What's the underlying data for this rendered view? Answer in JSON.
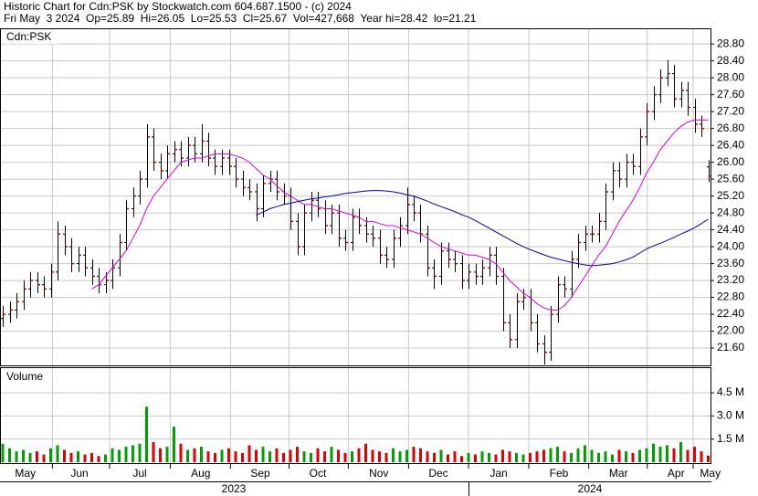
{
  "chart_data": [
    {
      "type": "ohlc",
      "title": "Historic Chart for Cdn:PSK by Stockwatch.com 604.687.1500 - (c) 2024",
      "subtitle": "Fri May  3 2024  Op=25.89  Hi=26.05  Lo=25.53  Cl=25.67  Vol=427,668  Year hi=28.42  lo=21.21",
      "label": "Cdn:PSK",
      "color": "#000000",
      "close_color": "#cc0000",
      "grid": true,
      "xlim": [
        0,
        103
      ],
      "xticks": [
        {
          "value": 3.3,
          "label": "May"
        },
        {
          "value": 11.2,
          "label": "Jun"
        },
        {
          "value": 20,
          "label": "Jul"
        },
        {
          "value": 28.9,
          "label": "Aug"
        },
        {
          "value": 37.6,
          "label": "Sep"
        },
        {
          "value": 46,
          "label": "Oct"
        },
        {
          "value": 54.9,
          "label": "Nov"
        },
        {
          "value": 63.6,
          "label": "Dec"
        },
        {
          "value": 72.4,
          "label": "Jan"
        },
        {
          "value": 81.2,
          "label": "Feb"
        },
        {
          "value": 89.9,
          "label": "Mar"
        },
        {
          "value": 98.3,
          "label": "Apr"
        },
        {
          "value": 103.3,
          "label": "May"
        }
      ],
      "years": [
        "2023",
        "2024"
      ],
      "ylim": [
        21.19,
        29.15
      ],
      "yticks": [
        {
          "value": 21.6,
          "label": "21.60"
        },
        {
          "value": 22,
          "label": "22.00"
        },
        {
          "value": 22.4,
          "label": "22.40"
        },
        {
          "value": 22.8,
          "label": "22.80"
        },
        {
          "value": 23.2,
          "label": "23.20"
        },
        {
          "value": 23.6,
          "label": "23.60"
        },
        {
          "value": 24,
          "label": "24.00"
        },
        {
          "value": 24.4,
          "label": "24.40"
        },
        {
          "value": 24.8,
          "label": "24.80"
        },
        {
          "value": 25.2,
          "label": "25.20"
        },
        {
          "value": 25.6,
          "label": "25.60"
        },
        {
          "value": 26,
          "label": "26.00"
        },
        {
          "value": 26.4,
          "label": "26.40"
        },
        {
          "value": 26.8,
          "label": "26.80"
        },
        {
          "value": 27.2,
          "label": "27.20"
        },
        {
          "value": 27.6,
          "label": "27.60"
        },
        {
          "value": 28,
          "label": "28.00"
        },
        {
          "value": 28.4,
          "label": "28.40"
        },
        {
          "value": 28.8,
          "label": "28.80"
        }
      ],
      "open": [
        22.3,
        22.4,
        22.5,
        22.7,
        23.0,
        23.2,
        23.1,
        23.0,
        23.4,
        24.3,
        24.0,
        23.6,
        23.8,
        23.5,
        23.3,
        23.1,
        23.2,
        23.5,
        24.1,
        24.9,
        25.2,
        25.6,
        26.6,
        26.0,
        25.8,
        26.2,
        26.3,
        26.1,
        26.4,
        26.2,
        26.5,
        26.1,
        25.9,
        26.1,
        25.9,
        25.6,
        25.4,
        25.3,
        24.9,
        25.5,
        25.6,
        25.3,
        25.2,
        24.6,
        24.0,
        24.8,
        25.1,
        24.9,
        24.5,
        24.8,
        24.2,
        24.1,
        24.7,
        24.5,
        24.3,
        24.2,
        23.8,
        23.7,
        24.2,
        24.5,
        25.0,
        24.8,
        24.3,
        23.5,
        23.3,
        23.9,
        23.7,
        23.6,
        23.2,
        23.4,
        23.3,
        23.5,
        23.8,
        23.3,
        22.2,
        21.8,
        22.7,
        22.8,
        22.2,
        21.7,
        21.5,
        22.4,
        23.1,
        23.0,
        23.7,
        24.1,
        24.3,
        24.3,
        24.6,
        25.3,
        25.8,
        25.6,
        26.0,
        25.9,
        26.6,
        27.2,
        27.6,
        28.0,
        28.1,
        27.5,
        27.7,
        27.3,
        26.9,
        25.89
      ],
      "high": [
        22.6,
        22.7,
        22.9,
        23.2,
        23.4,
        23.4,
        23.3,
        23.6,
        24.6,
        24.5,
        24.2,
        24.0,
        24.0,
        23.7,
        23.5,
        23.4,
        23.7,
        24.3,
        25.1,
        25.4,
        25.8,
        26.9,
        26.8,
        26.2,
        26.4,
        26.5,
        26.5,
        26.6,
        26.6,
        26.9,
        26.7,
        26.3,
        26.3,
        26.3,
        26.1,
        25.8,
        25.6,
        25.5,
        25.7,
        25.8,
        25.8,
        25.5,
        25.4,
        24.8,
        25.0,
        25.3,
        25.3,
        25.1,
        25.0,
        25.0,
        24.4,
        24.9,
        24.9,
        24.7,
        24.5,
        24.4,
        24.0,
        24.4,
        24.7,
        25.4,
        25.2,
        25.0,
        24.5,
        23.7,
        24.1,
        24.1,
        23.9,
        23.8,
        23.6,
        23.6,
        23.7,
        24.0,
        24.0,
        23.5,
        22.4,
        22.9,
        23.0,
        23.0,
        22.4,
        21.9,
        22.6,
        23.3,
        23.3,
        23.9,
        24.3,
        24.5,
        24.5,
        24.8,
        25.5,
        26.0,
        26.0,
        26.2,
        26.2,
        26.8,
        27.4,
        27.8,
        28.2,
        28.42,
        28.3,
        27.9,
        27.9,
        27.5,
        27.1,
        26.05
      ],
      "low": [
        22.1,
        22.2,
        22.3,
        22.5,
        22.8,
        22.9,
        22.8,
        22.8,
        23.2,
        23.8,
        23.4,
        23.4,
        23.3,
        23.1,
        22.9,
        22.9,
        23.0,
        23.3,
        23.9,
        24.7,
        25.0,
        25.4,
        25.8,
        25.6,
        25.6,
        26.0,
        25.9,
        25.9,
        26.0,
        26.0,
        25.9,
        25.7,
        25.7,
        25.7,
        25.4,
        25.2,
        25.1,
        24.6,
        24.7,
        25.3,
        25.1,
        25.0,
        24.4,
        23.8,
        23.8,
        24.6,
        24.7,
        24.3,
        24.3,
        24.0,
        23.9,
        23.9,
        24.3,
        24.1,
        24.0,
        23.6,
        23.5,
        23.5,
        24.0,
        24.3,
        24.6,
        24.1,
        23.3,
        23.0,
        23.1,
        23.5,
        23.4,
        23.0,
        23.0,
        23.1,
        23.1,
        23.3,
        23.1,
        22.0,
        21.6,
        21.6,
        22.5,
        22.0,
        21.5,
        21.21,
        21.3,
        22.2,
        22.8,
        22.8,
        23.5,
        23.9,
        24.1,
        24.1,
        24.4,
        25.1,
        25.4,
        25.4,
        25.7,
        25.7,
        26.4,
        27.0,
        27.4,
        27.8,
        27.3,
        27.3,
        27.1,
        26.7,
        26.6,
        25.53
      ],
      "close": [
        22.4,
        22.5,
        22.7,
        23.0,
        23.2,
        23.1,
        23.0,
        23.4,
        24.3,
        24.0,
        23.6,
        23.8,
        23.5,
        23.3,
        23.1,
        23.2,
        23.5,
        24.1,
        24.9,
        25.2,
        25.6,
        26.6,
        26.0,
        25.8,
        26.2,
        26.3,
        26.1,
        26.4,
        26.2,
        26.5,
        26.1,
        25.9,
        26.1,
        25.9,
        25.6,
        25.4,
        25.3,
        24.9,
        25.5,
        25.6,
        25.3,
        25.2,
        24.6,
        24.0,
        24.8,
        25.1,
        24.9,
        24.5,
        24.8,
        24.2,
        24.1,
        24.7,
        24.5,
        24.3,
        24.2,
        23.8,
        23.7,
        24.2,
        24.5,
        25.0,
        24.8,
        24.3,
        23.5,
        23.3,
        23.9,
        23.7,
        23.6,
        23.2,
        23.4,
        23.3,
        23.5,
        23.8,
        23.3,
        22.2,
        21.8,
        22.7,
        22.8,
        22.2,
        21.7,
        21.5,
        22.4,
        23.1,
        23.0,
        23.7,
        24.1,
        24.3,
        24.3,
        24.6,
        25.3,
        25.8,
        25.6,
        26.0,
        25.9,
        26.6,
        27.2,
        27.6,
        28.0,
        28.1,
        27.5,
        27.7,
        27.3,
        26.9,
        26.8,
        25.67
      ],
      "series": [
        {
          "color": "#e000e0",
          "values": [
            null,
            null,
            null,
            null,
            null,
            null,
            null,
            null,
            null,
            null,
            null,
            null,
            null,
            23.0,
            23.1,
            23.3,
            23.5,
            23.7,
            23.9,
            24.2,
            24.5,
            24.9,
            25.2,
            25.4,
            25.6,
            25.8,
            26.0,
            26.05,
            26.1,
            26.1,
            26.15,
            26.2,
            26.2,
            26.2,
            26.15,
            26.1,
            26.0,
            25.85,
            25.7,
            25.6,
            25.45,
            25.3,
            25.2,
            25.1,
            25.0,
            25.0,
            24.95,
            24.9,
            24.9,
            24.85,
            24.8,
            24.75,
            24.7,
            24.6,
            24.6,
            24.55,
            24.5,
            24.5,
            24.45,
            24.4,
            24.35,
            24.3,
            24.2,
            24.1,
            24.0,
            23.95,
            23.9,
            23.85,
            23.8,
            23.8,
            23.75,
            23.7,
            23.6,
            23.4,
            23.2,
            23.05,
            22.9,
            22.8,
            22.65,
            22.55,
            22.5,
            22.5,
            22.6,
            22.8,
            23.05,
            23.3,
            23.55,
            23.8,
            24.0,
            24.3,
            24.6,
            24.85,
            25.1,
            25.4,
            25.75,
            26.0,
            26.3,
            26.5,
            26.7,
            26.85,
            26.95,
            27.0,
            27.0,
            27.0
          ]
        },
        {
          "color": "#0000c0",
          "values": [
            null,
            null,
            null,
            null,
            null,
            null,
            null,
            null,
            null,
            null,
            null,
            null,
            null,
            null,
            null,
            null,
            null,
            null,
            null,
            null,
            null,
            null,
            null,
            null,
            null,
            null,
            null,
            null,
            null,
            null,
            null,
            null,
            null,
            null,
            null,
            null,
            null,
            24.75,
            24.82,
            24.9,
            24.95,
            25.0,
            25.03,
            25.07,
            25.1,
            25.13,
            25.15,
            25.18,
            25.2,
            25.23,
            25.26,
            25.28,
            25.3,
            25.32,
            25.33,
            25.33,
            25.32,
            25.3,
            25.27,
            25.23,
            25.2,
            25.14,
            25.08,
            25.01,
            24.95,
            24.89,
            24.83,
            24.76,
            24.7,
            24.62,
            24.53,
            24.44,
            24.35,
            24.26,
            24.17,
            24.08,
            24.0,
            23.93,
            23.87,
            23.81,
            23.75,
            23.71,
            23.67,
            23.63,
            23.6,
            23.57,
            23.55,
            23.56,
            23.58,
            23.6,
            23.64,
            23.69,
            23.75,
            23.85,
            23.95,
            24.02,
            24.08,
            24.15,
            24.22,
            24.3,
            24.37,
            24.45,
            24.55,
            24.65
          ]
        }
      ]
    },
    {
      "type": "bar",
      "label": "Volume",
      "up_color": "#00a000",
      "down_color": "#e00000",
      "grid": true,
      "ylim": [
        0,
        6100000
      ],
      "yticks": [
        {
          "value": 1500000,
          "label": "1.5 M"
        },
        {
          "value": 3000000,
          "label": "3.0 M"
        },
        {
          "value": 4500000,
          "label": "4.5 M"
        }
      ],
      "values": [
        1200000,
        900000,
        700000,
        800000,
        600000,
        700000,
        500000,
        900000,
        1100000,
        800000,
        600000,
        700000,
        500000,
        600000,
        400000,
        500000,
        900000,
        800000,
        1000000,
        1100000,
        1200000,
        3600000,
        1300000,
        900000,
        1000000,
        2300000,
        1200000,
        800000,
        900000,
        1000000,
        700000,
        600000,
        800000,
        900000,
        700000,
        600000,
        1100000,
        800000,
        1000000,
        700000,
        900000,
        600000,
        800000,
        1000000,
        700000,
        600000,
        900000,
        700000,
        1000000,
        800000,
        600000,
        700000,
        900000,
        1200000,
        800000,
        700000,
        600000,
        900000,
        700000,
        800000,
        1000000,
        900000,
        700000,
        600000,
        800000,
        500000,
        700000,
        400000,
        600000,
        500000,
        700000,
        600000,
        500000,
        800000,
        700000,
        600000,
        500000,
        600000,
        700000,
        800000,
        900000,
        1000000,
        700000,
        600000,
        900000,
        1100000,
        800000,
        600000,
        700000,
        500000,
        800000,
        700000,
        600000,
        800000,
        900000,
        1200000,
        1000000,
        1100000,
        900000,
        1300000,
        800000,
        1000000,
        700000,
        427668
      ]
    }
  ]
}
